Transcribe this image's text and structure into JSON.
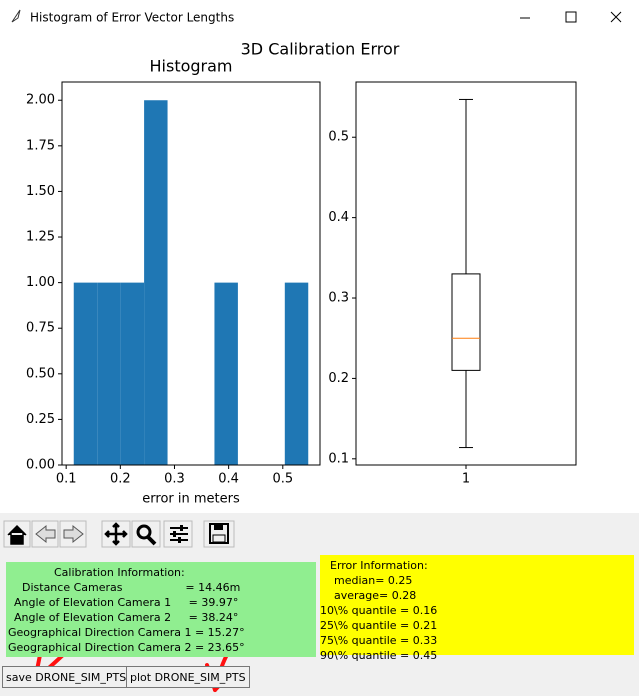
{
  "window": {
    "title": "Histogram of Error Vector Lengths"
  },
  "figure": {
    "title": "3D Calibration Error"
  },
  "chart_data": [
    {
      "type": "histogram",
      "title": "Histogram",
      "x_label": "error in meters",
      "bins": [
        0.114,
        0.1573,
        0.2006,
        0.2439,
        0.2872,
        0.3305,
        0.3738,
        0.4171,
        0.4604,
        0.5037,
        0.547
      ],
      "counts": [
        1,
        1,
        1,
        2,
        0,
        0,
        1,
        0,
        0,
        1
      ],
      "color": "#1f77b4",
      "xlim": [
        0.0923,
        0.5687
      ],
      "xticks": [
        0.1,
        0.2,
        0.3,
        0.4,
        0.5
      ],
      "ylim": [
        0,
        2.1
      ],
      "yticks": [
        {
          "value": 0,
          "label": "0.00"
        },
        {
          "value": 0.25,
          "label": "0.25"
        },
        {
          "value": 0.5,
          "label": "0.50"
        },
        {
          "value": 0.75,
          "label": "0.75"
        },
        {
          "value": 1,
          "label": "1.00"
        },
        {
          "value": 1.25,
          "label": "1.25"
        },
        {
          "value": 1.5,
          "label": "1.50"
        },
        {
          "value": 1.75,
          "label": "1.75"
        },
        {
          "value": 2,
          "label": "2.00"
        }
      ]
    },
    {
      "type": "box",
      "categories": [
        "1"
      ],
      "whisker_low": 0.114,
      "q1": 0.21,
      "median": 0.25,
      "q3": 0.33,
      "whisker_high": 0.547,
      "median_color": "#ff7f0e",
      "ylim": [
        0.0923,
        0.5687
      ],
      "yticks": [
        0.1,
        0.2,
        0.3,
        0.4,
        0.5
      ]
    }
  ],
  "calibration_info": {
    "title": "Calibration Information:",
    "lines": [
      "Distance Cameras                  = 14.46m",
      "Angle of Elevation Camera 1     = 39.97°",
      "Angle of Elevation Camera 2     = 38.24°",
      "Geographical Direction Camera 1 = 15.27°",
      "Geographical Direction Camera 2 = 23.65°"
    ]
  },
  "error_info": {
    "title": "Error Information:",
    "lines": [
      "    median= 0.25",
      "    average= 0.28",
      "10\\% quantile = 0.16",
      "25\\% quantile = 0.21",
      "75\\% quantile = 0.33",
      "90\\% quantile = 0.45"
    ]
  },
  "buttons": [
    "save DRONE_SIM_PTS",
    "plot DRONE_SIM_PTS"
  ]
}
